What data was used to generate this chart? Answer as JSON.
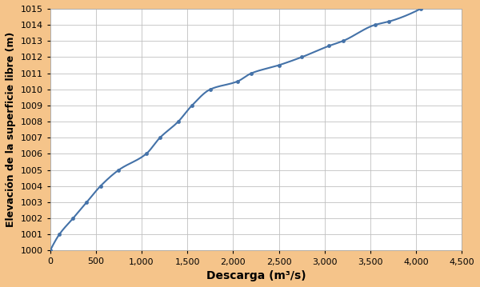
{
  "pts_x": [
    0,
    100,
    250,
    400,
    550,
    750,
    1050,
    1200,
    1400,
    1550,
    1750,
    2050,
    2200,
    2500,
    2750,
    3050,
    3200,
    3550,
    3700,
    4050
  ],
  "pts_y": [
    1000,
    1001,
    1002,
    1003,
    1004,
    1005,
    1006,
    1007,
    1008,
    1009,
    1010,
    1010.5,
    1011,
    1011.5,
    1012,
    1012.7,
    1013,
    1014,
    1014.2,
    1015
  ],
  "xlabel": "Descarga (m³/s)",
  "ylabel": "Elevación de la superficie libre (m)",
  "xlim": [
    0,
    4500
  ],
  "ylim": [
    1000,
    1015
  ],
  "xticks": [
    0,
    500,
    1000,
    1500,
    2000,
    2500,
    3000,
    3500,
    4000,
    4500
  ],
  "yticks": [
    1000,
    1001,
    1002,
    1003,
    1004,
    1005,
    1006,
    1007,
    1008,
    1009,
    1010,
    1011,
    1012,
    1013,
    1014,
    1015
  ],
  "line_color": "#4472a8",
  "marker_color": "#4472a8",
  "background_color": "#f5c48a",
  "plot_bg_color": "#ffffff",
  "grid_color": "#c0c0c0",
  "xlabel_fontsize": 10,
  "ylabel_fontsize": 9,
  "tick_fontsize": 8
}
